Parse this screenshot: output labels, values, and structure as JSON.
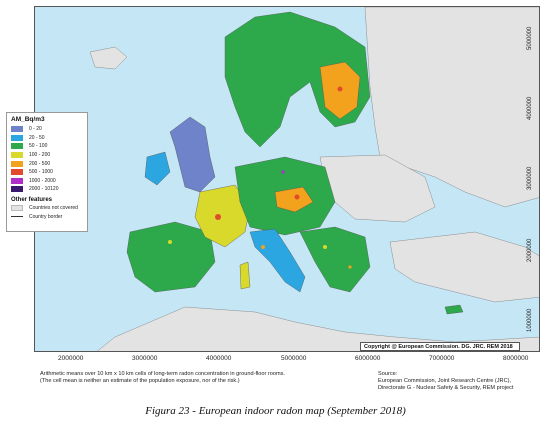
{
  "map": {
    "legend": {
      "title": "AM_Bq/m3",
      "classes": [
        {
          "label": "0 - 20",
          "color": "#6e83c9"
        },
        {
          "label": "20 - 50",
          "color": "#2ba6e0"
        },
        {
          "label": "50 - 100",
          "color": "#2da84a"
        },
        {
          "label": "100 - 200",
          "color": "#d8d92a"
        },
        {
          "label": "200 - 500",
          "color": "#f2a21c"
        },
        {
          "label": "500 - 1000",
          "color": "#e14b2b"
        },
        {
          "label": "1000 - 2000",
          "color": "#b12cc8"
        },
        {
          "label": "2000 - 10120",
          "color": "#3b1870"
        }
      ],
      "other_title": "Other features",
      "not_covered_label": "Countries not covered",
      "not_covered_color": "#e3e3e3",
      "border_label": "Country border"
    },
    "x_ticks": [
      "2000000",
      "3000000",
      "4000000",
      "5000000",
      "6000000",
      "7000000",
      "8000000"
    ],
    "y_ticks": [
      "5000000",
      "4000000",
      "3000000",
      "2000000",
      "1000000"
    ],
    "sea_color": "#c5e6f5",
    "copyright": "Copyright @ European Commission. DG. JRC. REM 2018"
  },
  "note_lines": [
    "Arithmetic means over 10 km x 10 km cells of long-term radon concentration in ground-floor rooms.",
    "(The cell mean is neither an estimate of the population exposure, nor of the risk.)"
  ],
  "source_lines": [
    "Source:",
    "European Commission, Joint Research Centre (JRC),",
    "Directorate G - Nuclear Safety & Security, REM project"
  ],
  "caption": "Figura 23 - European indoor radon map (September 2018)"
}
